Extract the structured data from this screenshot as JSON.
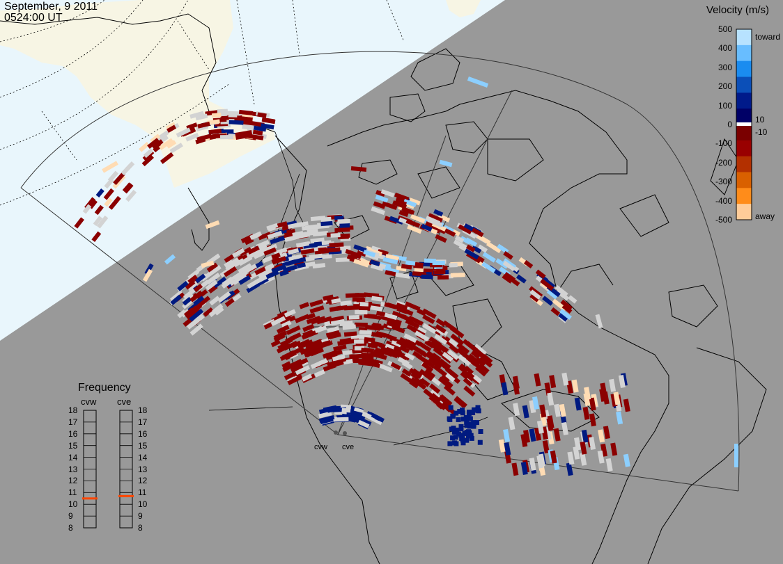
{
  "header": {
    "date": "September, 9 2011",
    "time": "0524:00 UT"
  },
  "radars": {
    "west_label": "cvw",
    "east_label": "cve"
  },
  "velocity_legend": {
    "title": "Velocity (m/s)",
    "toward_label": "toward",
    "away_label": "away",
    "ticks": [
      "500",
      "400",
      "300",
      "200",
      "100",
      "0",
      "-100",
      "-200",
      "-300",
      "-400",
      "-500"
    ],
    "inner_labels": [
      "10",
      "-10"
    ],
    "colors": [
      "#b7e2ff",
      "#68bdff",
      "#1a8cf0",
      "#0b4fb8",
      "#001a8a",
      "#000066",
      "#7a0000",
      "#990000",
      "#b33000",
      "#d96000",
      "#ff8c1a",
      "#ffcc99"
    ]
  },
  "frequency_legend": {
    "title": "Frequency",
    "columns": [
      "cvw",
      "cve"
    ],
    "ticks": [
      "18",
      "17",
      "16",
      "15",
      "14",
      "13",
      "12",
      "11",
      "10",
      "9",
      "8"
    ],
    "cvw_mhz": 10.5,
    "cve_mhz": 10.7,
    "range_mhz": [
      8,
      18
    ],
    "marker_color": "#ff4500"
  },
  "colors": {
    "background": "#999999",
    "sunlit": "#e9f6fc",
    "land_sunlit": "#f7f5e4",
    "ground_scatter": "#d3d3d3",
    "away_red": "#8b0000",
    "toward_navy": "#001a80",
    "toward_light": "#8ccfff",
    "away_light": "#ffdcb4"
  },
  "icons": {
    "radar_site": "dot-icon"
  }
}
